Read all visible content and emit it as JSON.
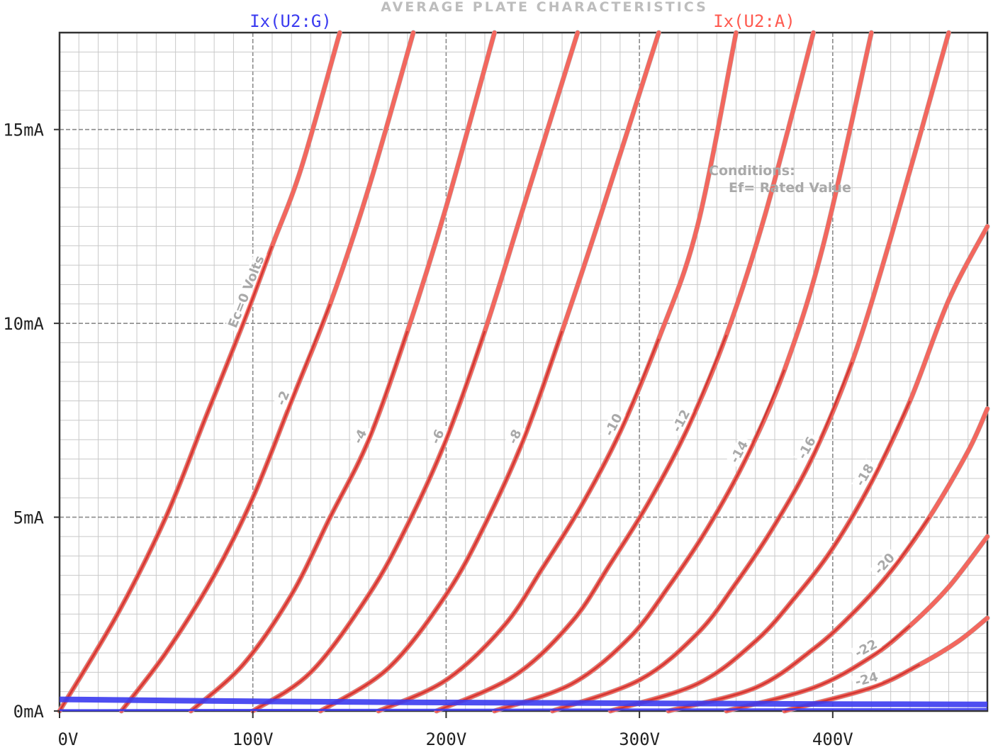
{
  "chart_data": {
    "type": "line",
    "title": "AVERAGE PLATE CHARACTERISTICS",
    "x_ticks": [
      {
        "value": 0,
        "label": "0V"
      },
      {
        "value": 100,
        "label": "100V"
      },
      {
        "value": 200,
        "label": "200V"
      },
      {
        "value": 300,
        "label": "300V"
      },
      {
        "value": 400,
        "label": "400V"
      }
    ],
    "y_ticks": [
      {
        "value": 0,
        "label": "0mA"
      },
      {
        "value": 5,
        "label": "5mA"
      },
      {
        "value": 10,
        "label": "10mA"
      },
      {
        "value": 15,
        "label": "15mA"
      }
    ],
    "xlim": [
      0,
      480
    ],
    "ylim": [
      0,
      17.5
    ],
    "grid": true,
    "conditions": [
      "Conditions:",
      "Ef= Rated Value"
    ],
    "legend": [
      {
        "name": "Ix(U2:G)",
        "color": "#3b3bf0"
      },
      {
        "name": "Ix(U2:A)",
        "color": "#ff5a50"
      }
    ],
    "grid_curves": [
      {
        "ec": 0,
        "label": "Ec=0 Volts",
        "x": [
          0,
          30,
          55,
          75,
          95,
          110,
          125,
          145
        ],
        "y": [
          0,
          2.5,
          5.0,
          7.5,
          10.0,
          12.0,
          14.0,
          17.5
        ]
      },
      {
        "ec": -2,
        "label": "-2",
        "x": [
          32,
          55,
          80,
          100,
          120,
          140,
          160,
          183
        ],
        "y": [
          0,
          1.5,
          3.5,
          5.5,
          8.0,
          10.5,
          13.5,
          17.5
        ]
      },
      {
        "ec": -4,
        "label": "-4",
        "x": [
          68,
          95,
          120,
          140,
          160,
          180,
          200,
          225
        ],
        "y": [
          0,
          1.2,
          3.0,
          5.0,
          7.0,
          9.8,
          13.0,
          17.5
        ]
      },
      {
        "ec": -6,
        "label": "-6",
        "x": [
          100,
          130,
          160,
          180,
          200,
          220,
          240,
          268
        ],
        "y": [
          0,
          1.0,
          3.0,
          4.8,
          7.0,
          9.8,
          13.0,
          17.5
        ]
      },
      {
        "ec": -8,
        "label": "-8",
        "x": [
          135,
          170,
          200,
          220,
          240,
          260,
          280,
          310
        ],
        "y": [
          0,
          1.1,
          3.0,
          4.8,
          7.0,
          9.8,
          12.8,
          17.5
        ]
      },
      {
        "ec": -10,
        "label": "-10",
        "x": [
          165,
          200,
          230,
          250,
          270,
          290,
          310,
          330,
          350
        ],
        "y": [
          0,
          0.8,
          2.2,
          3.7,
          5.3,
          7.2,
          9.6,
          12.5,
          17.5
        ]
      },
      {
        "ec": -12,
        "label": "-12",
        "x": [
          195,
          235,
          265,
          285,
          305,
          325,
          345,
          365,
          390
        ],
        "y": [
          0,
          0.9,
          2.3,
          3.8,
          5.4,
          7.3,
          9.7,
          12.8,
          17.5
        ]
      },
      {
        "ec": -14,
        "label": "-14",
        "x": [
          225,
          265,
          295,
          315,
          335,
          355,
          375,
          395,
          420
        ],
        "y": [
          0,
          0.7,
          1.9,
          3.2,
          4.7,
          6.5,
          8.8,
          12.0,
          17.5
        ]
      },
      {
        "ec": -16,
        "label": "-16",
        "x": [
          255,
          300,
          330,
          350,
          370,
          390,
          410,
          430,
          460
        ],
        "y": [
          0,
          0.8,
          2.0,
          3.3,
          4.8,
          6.6,
          9.0,
          12.2,
          17.5
        ]
      },
      {
        "ec": -18,
        "label": "-18",
        "x": [
          285,
          330,
          360,
          380,
          400,
          420,
          440,
          460,
          480
        ],
        "y": [
          0,
          0.7,
          1.8,
          2.9,
          4.2,
          5.9,
          8.0,
          10.6,
          12.5
        ]
      },
      {
        "ec": -20,
        "label": "-20",
        "x": [
          315,
          360,
          390,
          410,
          430,
          450,
          470,
          480
        ],
        "y": [
          0,
          0.6,
          1.6,
          2.5,
          3.6,
          5.0,
          6.7,
          7.8
        ]
      },
      {
        "ec": -22,
        "label": "-22",
        "x": [
          345,
          390,
          420,
          440,
          460,
          480
        ],
        "y": [
          0,
          0.6,
          1.4,
          2.2,
          3.2,
          4.5
        ]
      },
      {
        "ec": -24,
        "label": "-24",
        "x": [
          375,
          420,
          445,
          465,
          480
        ],
        "y": [
          0,
          0.6,
          1.2,
          1.8,
          2.4
        ]
      }
    ],
    "series": [
      {
        "name": "Ix(U2:A)",
        "color": "#ff5a50",
        "curves": [
          {
            "x": [
              0,
              30,
              55,
              75,
              95,
              110,
              125,
              145
            ],
            "y": [
              0,
              2.5,
              5.0,
              7.5,
              10.0,
              12.0,
              14.0,
              17.5
            ]
          },
          {
            "x": [
              32,
              55,
              80,
              100,
              120,
              140,
              160,
              183
            ],
            "y": [
              0,
              1.5,
              3.5,
              5.5,
              8.0,
              10.5,
              13.5,
              17.5
            ]
          },
          {
            "x": [
              68,
              95,
              120,
              140,
              160,
              180,
              200,
              225
            ],
            "y": [
              0,
              1.2,
              3.0,
              5.0,
              7.0,
              9.8,
              13.0,
              17.5
            ]
          },
          {
            "x": [
              100,
              130,
              160,
              180,
              200,
              220,
              240,
              268
            ],
            "y": [
              0,
              1.0,
              3.0,
              4.8,
              7.0,
              9.8,
              13.0,
              17.5
            ]
          },
          {
            "x": [
              135,
              170,
              200,
              220,
              240,
              260,
              280,
              310
            ],
            "y": [
              0,
              1.1,
              3.0,
              4.8,
              7.0,
              9.8,
              12.8,
              17.5
            ]
          },
          {
            "x": [
              165,
              200,
              230,
              250,
              270,
              290,
              310,
              330,
              350
            ],
            "y": [
              0,
              0.8,
              2.2,
              3.7,
              5.3,
              7.2,
              9.6,
              12.5,
              17.5
            ]
          },
          {
            "x": [
              195,
              235,
              265,
              285,
              305,
              325,
              345,
              365,
              390
            ],
            "y": [
              0,
              0.9,
              2.3,
              3.8,
              5.4,
              7.3,
              9.7,
              12.8,
              17.5
            ]
          },
          {
            "x": [
              225,
              265,
              295,
              315,
              335,
              355,
              375,
              395,
              420
            ],
            "y": [
              0,
              0.7,
              1.9,
              3.2,
              4.7,
              6.5,
              8.8,
              12.0,
              17.5
            ]
          },
          {
            "x": [
              255,
              300,
              330,
              350,
              370,
              390,
              410,
              430,
              460
            ],
            "y": [
              0,
              0.8,
              2.0,
              3.3,
              4.8,
              6.6,
              9.0,
              12.2,
              17.5
            ]
          },
          {
            "x": [
              285,
              330,
              360,
              380,
              400,
              420,
              440,
              460,
              480
            ],
            "y": [
              0,
              0.7,
              1.8,
              2.9,
              4.2,
              5.9,
              8.0,
              10.6,
              12.5
            ]
          },
          {
            "x": [
              315,
              360,
              390,
              410,
              430,
              450,
              470,
              480
            ],
            "y": [
              0,
              0.6,
              1.6,
              2.5,
              3.6,
              5.0,
              6.7,
              7.8
            ]
          },
          {
            "x": [
              345,
              390,
              420,
              440,
              460,
              480
            ],
            "y": [
              0,
              0.6,
              1.4,
              2.2,
              3.2,
              4.5
            ]
          },
          {
            "x": [
              375,
              420,
              445,
              465,
              480
            ],
            "y": [
              0,
              0.6,
              1.2,
              1.8,
              2.4
            ]
          }
        ]
      },
      {
        "name": "Ix(U2:G)",
        "color": "#3b3bf0",
        "curves": [
          {
            "x": [
              0,
              100,
              200,
              300,
              400,
              480
            ],
            "y": [
              0.3,
              0.25,
              0.22,
              0.2,
              0.18,
              0.17
            ]
          },
          {
            "x": [
              0,
              480
            ],
            "y": [
              0.02,
              0.05
            ]
          }
        ]
      }
    ]
  }
}
